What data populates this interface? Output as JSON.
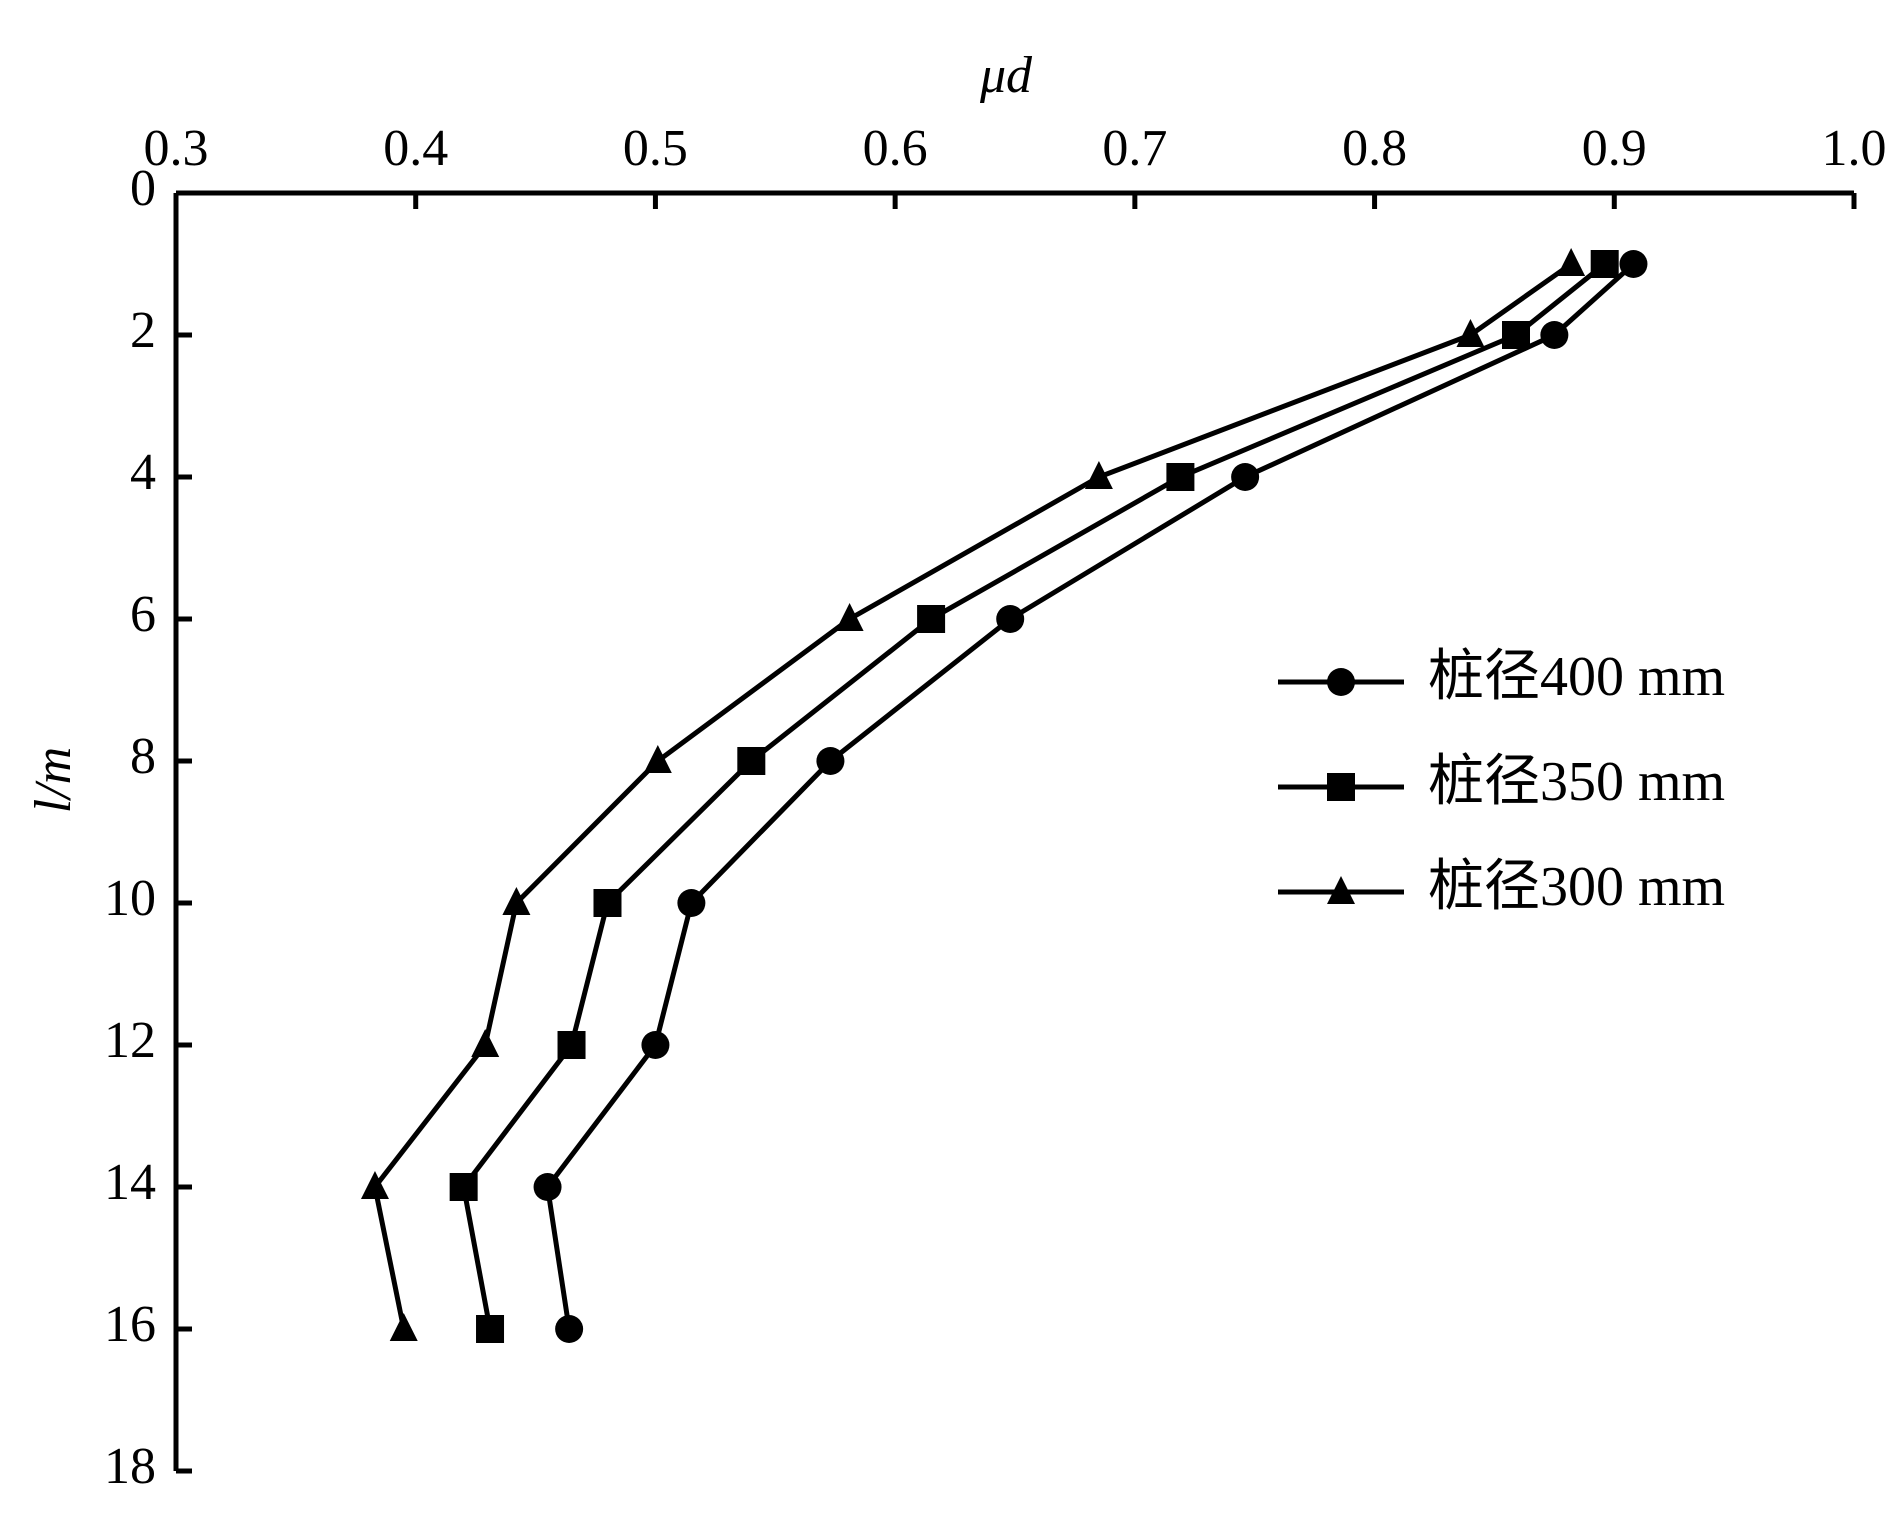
{
  "chart_data": {
    "type": "line",
    "x_label": "μd",
    "y_label": "l/m",
    "y": [
      1,
      2,
      4,
      6,
      8,
      10,
      12,
      14,
      16
    ],
    "series": [
      {
        "name": "桩径400 mm",
        "marker": "circle",
        "color": "#000000",
        "values": [
          0.908,
          0.875,
          0.746,
          0.648,
          0.573,
          0.515,
          0.5,
          0.455,
          0.464
        ]
      },
      {
        "name": "桩径350 mm",
        "marker": "square",
        "color": "#000000",
        "values": [
          0.896,
          0.859,
          0.719,
          0.615,
          0.54,
          0.48,
          0.465,
          0.42,
          0.431
        ]
      },
      {
        "name": "桩径300 mm",
        "marker": "triangle",
        "color": "#000000",
        "values": [
          0.882,
          0.84,
          0.685,
          0.581,
          0.501,
          0.442,
          0.429,
          0.383,
          0.395
        ]
      }
    ],
    "xlim": [
      0.3,
      1.0
    ],
    "xticks": [
      0.3,
      0.4,
      0.5,
      0.6,
      0.7,
      0.8,
      0.9,
      {
        "value": 1.0,
        "label": "1.0"
      }
    ],
    "ylim": [
      0,
      18
    ],
    "yticks": [
      0,
      2,
      4,
      6,
      8,
      10,
      12,
      14,
      16,
      18
    ],
    "y_inverted": true,
    "legend": "right"
  }
}
